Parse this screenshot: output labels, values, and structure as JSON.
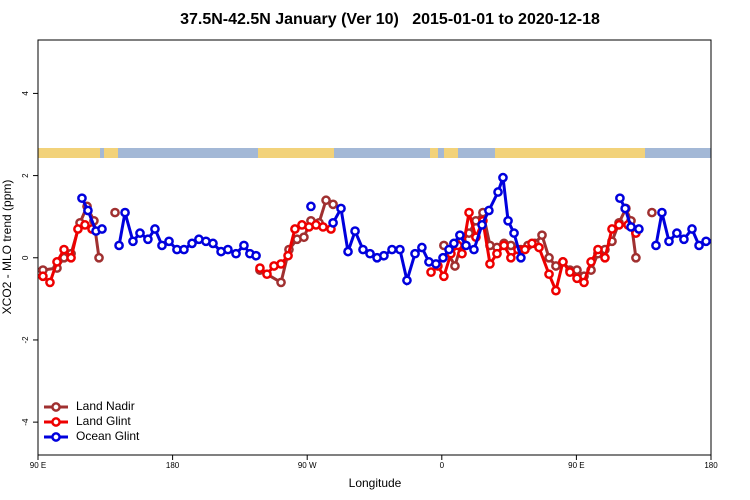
{
  "chart_data": {
    "type": "line",
    "title": "37.5N-42.5N January (Ver 10)   2015-01-01 to 2020-12-18",
    "x_label": "Longitude",
    "y_label": "XCO2 - MLO trend (ppm)",
    "xlim": [
      90,
      540
    ],
    "ylim": [
      -4.8,
      5.3
    ],
    "xticks": [
      {
        "value": 90,
        "label": "90 E"
      },
      180,
      {
        "value": 270,
        "label": "90 W"
      },
      {
        "value": 360,
        "label": "0"
      },
      {
        "value": 450,
        "label": "90 E"
      },
      {
        "value": 540,
        "label": "180"
      }
    ],
    "yticks": [
      -4,
      -2,
      0,
      2,
      4
    ],
    "legend": "bottomleft",
    "series": [
      {
        "name": "Land Nadir",
        "color": "#a03030",
        "x": [
          93.3,
          102.7,
          107.4,
          112.1,
          118.1,
          122.8,
          127.4,
          130.8,
          null,
          141.5,
          null,
          238.4,
          252.5,
          257.8,
          263.2,
          267.8,
          272.5,
          277.9,
          282.6,
          287.3,
          null,
          361.4,
          368.8,
          373.5,
          378.2,
          382.8,
          387.5,
          392.2,
          396.9,
          401.6,
          406.2,
          412.9,
          417.6,
          422.3,
          427.0,
          431.7,
          436.3,
          441.0,
          445.7,
          450.4,
          455.1,
          459.8,
          464.4,
          469.1,
          473.8,
          478.5,
          483.1,
          486.5,
          489.8,
          null,
          500.5
        ],
        "values": [
          -0.3,
          -0.25,
          0,
          0.1,
          0.85,
          1.25,
          0.9,
          0,
          null,
          1.1,
          null,
          -0.3,
          -0.6,
          0.2,
          0.45,
          0.5,
          0.9,
          0.85,
          1.4,
          1.3,
          null,
          0.3,
          -0.2,
          0.4,
          0.6,
          0.9,
          1.1,
          0.3,
          0.25,
          0.35,
          0.3,
          0.2,
          0.3,
          0.35,
          0.55,
          0,
          -0.2,
          -0.1,
          -0.3,
          -0.3,
          -0.45,
          -0.3,
          0.1,
          0.2,
          0.4,
          0.85,
          1.2,
          0.9,
          0,
          null,
          1.1
        ]
      },
      {
        "name": "Land Glint",
        "color": "#ee0000",
        "x": [
          93.3,
          98.0,
          102.7,
          107.4,
          112.1,
          116.7,
          121.4,
          126.1,
          null,
          238.4,
          243.1,
          247.8,
          252.5,
          257.2,
          261.8,
          266.5,
          271.2,
          275.9,
          280.6,
          285.9,
          null,
          352.8,
          357.4,
          361.4,
          366.1,
          370.8,
          373.5,
          378.2,
          382.8,
          387.5,
          392.2,
          396.9,
          401.6,
          406.2,
          410.9,
          415.6,
          420.3,
          425.0,
          431.7,
          436.3,
          441.0,
          445.7,
          450.4,
          455.1,
          459.8,
          464.4,
          469.1,
          473.8,
          478.5,
          484.5,
          489.8
        ],
        "values": [
          -0.45,
          -0.6,
          -0.1,
          0.2,
          0,
          0.7,
          0.8,
          0.7,
          null,
          -0.25,
          -0.4,
          -0.2,
          -0.15,
          0.05,
          0.7,
          0.8,
          0.75,
          0.8,
          0.75,
          0.7,
          null,
          -0.35,
          -0.2,
          -0.45,
          0.1,
          0.3,
          0.1,
          1.1,
          0.5,
          0.9,
          -0.15,
          0.1,
          0.3,
          0,
          0.2,
          0.2,
          0.35,
          0.25,
          -0.4,
          -0.8,
          -0.1,
          -0.35,
          -0.5,
          -0.6,
          -0.1,
          0.2,
          0,
          0.7,
          0.8,
          0.8,
          0.6
        ]
      },
      {
        "name": "Ocean Glint",
        "color": "#0000dd",
        "x": [
          119.4,
          123.4,
          128.8,
          132.8,
          null,
          144.2,
          148.2,
          153.5,
          158.2,
          163.5,
          168.2,
          172.9,
          177.6,
          182.9,
          187.6,
          193.0,
          197.6,
          202.3,
          207.0,
          212.4,
          217.0,
          222.4,
          227.7,
          231.7,
          235.8,
          null,
          272.5,
          null,
          287.3,
          292.6,
          297.3,
          302.0,
          307.3,
          312.0,
          316.7,
          321.3,
          326.7,
          332.0,
          336.7,
          342.1,
          346.7,
          351.4,
          356.1,
          360.8,
          364.8,
          368.1,
          372.1,
          376.2,
          381.5,
          386.9,
          391.5,
          397.6,
          400.9,
          404.3,
          408.3,
          412.9,
          null,
          479.1,
          482.6,
          486.5,
          491.8,
          null,
          503.2,
          507.2,
          511.9,
          517.2,
          521.9,
          527.3,
          532.0,
          536.7
        ],
        "values": [
          1.45,
          1.15,
          0.65,
          0.7,
          null,
          0.3,
          1.1,
          0.4,
          0.6,
          0.45,
          0.7,
          0.3,
          0.4,
          0.2,
          0.2,
          0.35,
          0.45,
          0.4,
          0.35,
          0.15,
          0.2,
          0.1,
          0.3,
          0.1,
          0.05,
          null,
          1.25,
          null,
          0.85,
          1.2,
          0.15,
          0.65,
          0.2,
          0.1,
          0,
          0.05,
          0.2,
          0.2,
          -0.55,
          0.1,
          0.25,
          -0.1,
          -0.15,
          0,
          0.2,
          0.35,
          0.55,
          0.3,
          0.2,
          0.8,
          1.15,
          1.6,
          1.95,
          0.9,
          0.6,
          0,
          null,
          1.45,
          1.2,
          0.75,
          0.7,
          null,
          0.3,
          1.1,
          0.4,
          0.6,
          0.45,
          0.7,
          0.3,
          0.4
        ]
      }
    ]
  }
}
